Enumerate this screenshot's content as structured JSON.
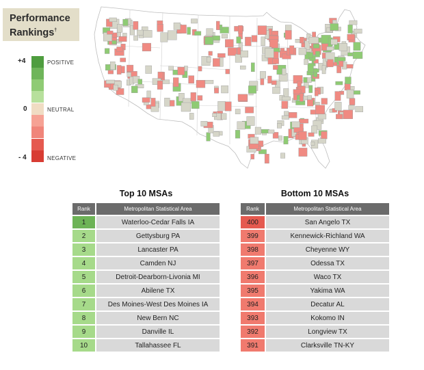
{
  "header": {
    "title_line1": "Performance",
    "title_line2": "Rankings",
    "title_mark": "†"
  },
  "legend": {
    "max_label": "+4",
    "mid_label": "0",
    "min_label": "- 4",
    "positive_label": "POSITIVE",
    "neutral_label": "NEUTRAL",
    "negative_label": "NEGATIVE",
    "colors": [
      "#4f9d3f",
      "#6fb55a",
      "#8fcb74",
      "#b7e09c",
      "#f0dcc3",
      "#f6a294",
      "#f0857a",
      "#e5594f",
      "#d83c33"
    ]
  },
  "map": {
    "positive_color": "#8fcb74",
    "neutral_color": "#d6d6c9",
    "negative_color": "#f08a82",
    "land_color": "#ffffff",
    "border_color": "#bdbdbd"
  },
  "top": {
    "title": "Top 10 MSAs",
    "col_rank": "Rank",
    "col_area": "Metropolitan Statistical Area",
    "rows": [
      {
        "rank": "1",
        "name": "Waterloo-Cedar Falls IA",
        "color": "#6db356"
      },
      {
        "rank": "2",
        "name": "Gettysburg PA",
        "color": "#a6da8a"
      },
      {
        "rank": "3",
        "name": "Lancaster PA",
        "color": "#a6da8a"
      },
      {
        "rank": "4",
        "name": "Camden NJ",
        "color": "#a6da8a"
      },
      {
        "rank": "5",
        "name": "Detroit-Dearborn-Livonia MI",
        "color": "#a6da8a"
      },
      {
        "rank": "6",
        "name": "Abilene TX",
        "color": "#a6da8a"
      },
      {
        "rank": "7",
        "name": "Des Moines-West Des Moines IA",
        "color": "#a6da8a"
      },
      {
        "rank": "8",
        "name": "New Bern NC",
        "color": "#a6da8a"
      },
      {
        "rank": "9",
        "name": "Danville IL",
        "color": "#a6da8a"
      },
      {
        "rank": "10",
        "name": "Tallahassee FL",
        "color": "#a6da8a"
      }
    ]
  },
  "bottom": {
    "title": "Bottom 10 MSAs",
    "col_rank": "Rank",
    "col_area": "Metropolitan Statistical Area",
    "rows": [
      {
        "rank": "400",
        "name": "San Angelo TX",
        "color": "#e5594f"
      },
      {
        "rank": "399",
        "name": "Kennewick-Richland WA",
        "color": "#f07a6e"
      },
      {
        "rank": "398",
        "name": "Cheyenne WY",
        "color": "#f07a6e"
      },
      {
        "rank": "397",
        "name": "Odessa TX",
        "color": "#f07a6e"
      },
      {
        "rank": "396",
        "name": "Waco TX",
        "color": "#f07a6e"
      },
      {
        "rank": "395",
        "name": "Yakima WA",
        "color": "#f07a6e"
      },
      {
        "rank": "394",
        "name": "Decatur AL",
        "color": "#f07a6e"
      },
      {
        "rank": "393",
        "name": "Kokomo IN",
        "color": "#f07a6e"
      },
      {
        "rank": "392",
        "name": "Longview TX",
        "color": "#f07a6e"
      },
      {
        "rank": "391",
        "name": "Clarksville TN-KY",
        "color": "#f07a6e"
      }
    ]
  }
}
